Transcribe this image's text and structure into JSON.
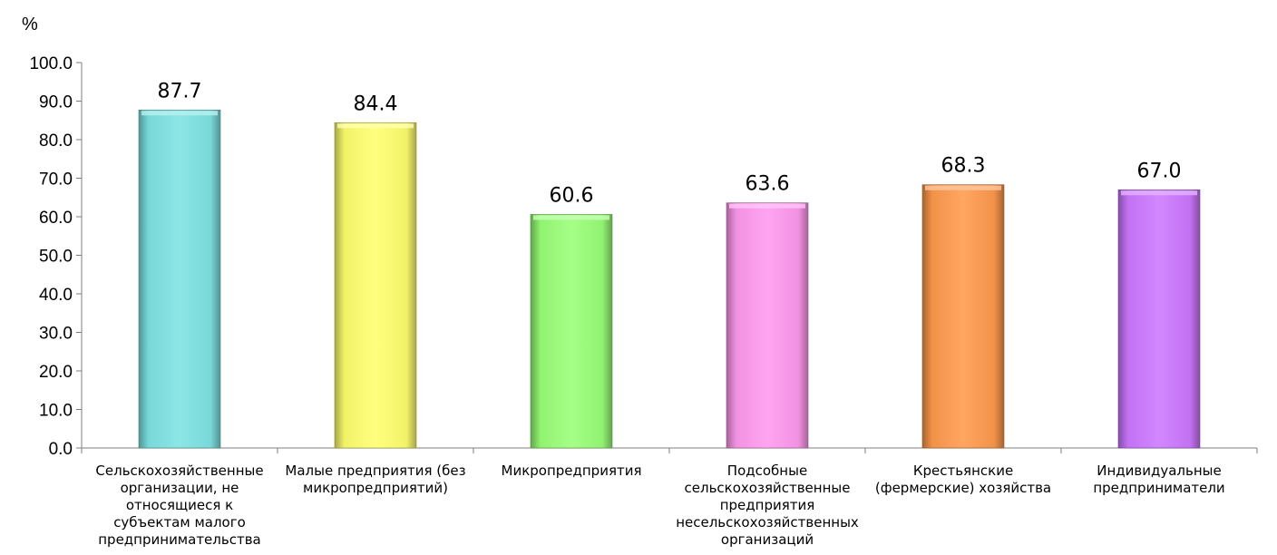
{
  "chart_data": {
    "type": "bar",
    "unit_label": "%",
    "categories": [
      [
        "Сельскохозяйственные",
        "организации, не",
        "относящиеся к",
        "субъектам малого",
        "предпринимательства"
      ],
      [
        "Малые предприятия (без",
        "микропредприятий)"
      ],
      [
        "Микропредприятия"
      ],
      [
        "Подсобные",
        "сельскохозяйственные",
        "предприятия",
        "несельскохозяйственных",
        "организаций"
      ],
      [
        "Крестьянские",
        "(фермерские) хозяйства"
      ],
      [
        "Индивидуальные",
        "предприниматели"
      ]
    ],
    "values": [
      87.7,
      84.4,
      60.6,
      63.6,
      68.3,
      67.0
    ],
    "value_labels": [
      "87.7",
      "84.4",
      "60.6",
      "63.6",
      "68.3",
      "67.0"
    ],
    "colors": [
      "#7ee3e3",
      "#ffff6e",
      "#99ff77",
      "#ff99ee",
      "#ff9a4d",
      "#cc77ff"
    ],
    "ylim": [
      0,
      100
    ],
    "yticks": [
      "0.0",
      "10.0",
      "20.0",
      "30.0",
      "40.0",
      "50.0",
      "60.0",
      "70.0",
      "80.0",
      "90.0",
      "100.0"
    ],
    "grid": false,
    "legend": "none"
  }
}
